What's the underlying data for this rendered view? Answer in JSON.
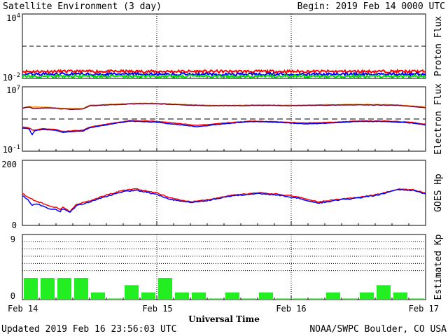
{
  "header": {
    "title": "Satellite Environment (3 day)",
    "begin": "Begin:  2019 Feb 14 0000 UTC"
  },
  "footer": {
    "updated": "Updated 2019 Feb 16 23:56:03 UTC",
    "credit": "NOAA/SWPC Boulder, CO USA"
  },
  "chart_data": [
    {
      "type": "line",
      "title": "Proton Flux",
      "ylabel": "Proton Flux",
      "yscale": "log",
      "ylim_exp": [
        -2,
        4
      ],
      "ytick_labels": [
        {
          "base": "10",
          "exp": "4"
        },
        {
          "base": "10",
          "exp": "-2"
        }
      ],
      "threshold_exp": 1,
      "xlim_days": [
        0,
        3
      ],
      "series": [
        {
          "color": "#ff0000",
          "level_exp": -1.35,
          "noise": 0.12
        },
        {
          "color": "#0000ff",
          "level_exp": -1.6,
          "noise": 0.12
        },
        {
          "color": "#00e000",
          "level_exp": -1.8,
          "noise": 0.12
        }
      ]
    },
    {
      "type": "line",
      "title": "Electron Flux",
      "ylabel": "Electron Flux",
      "yscale": "log",
      "ylim_exp": [
        -1,
        7
      ],
      "ytick_labels": [
        {
          "base": "10",
          "exp": "7"
        },
        {
          "base": "10",
          "exp": "-1"
        }
      ],
      "threshold_exp": 3,
      "xlim_days": [
        0,
        3
      ],
      "series": [
        {
          "color": "#ff8c00",
          "points": [
            [
              0,
              4.4
            ],
            [
              0.05,
              4.55
            ],
            [
              0.08,
              4.5
            ],
            [
              0.2,
              4.45
            ],
            [
              0.3,
              4.3
            ],
            [
              0.38,
              4.3
            ],
            [
              0.45,
              4.3
            ],
            [
              0.5,
              4.7
            ],
            [
              0.7,
              4.85
            ],
            [
              0.85,
              4.95
            ],
            [
              1.0,
              4.95
            ],
            [
              1.2,
              4.8
            ],
            [
              1.4,
              4.7
            ],
            [
              1.6,
              4.7
            ],
            [
              1.8,
              4.75
            ],
            [
              2.0,
              4.7
            ],
            [
              2.2,
              4.75
            ],
            [
              2.4,
              4.8
            ],
            [
              2.6,
              4.8
            ],
            [
              2.8,
              4.75
            ],
            [
              3.0,
              4.5
            ]
          ]
        },
        {
          "color": "#7a0030",
          "points": [
            [
              0,
              4.35
            ],
            [
              0.05,
              4.5
            ],
            [
              0.08,
              4.3
            ],
            [
              0.2,
              4.4
            ],
            [
              0.3,
              4.25
            ],
            [
              0.38,
              4.2
            ],
            [
              0.45,
              4.25
            ],
            [
              0.5,
              4.65
            ],
            [
              0.7,
              4.8
            ],
            [
              0.85,
              4.9
            ],
            [
              1.0,
              4.9
            ],
            [
              1.2,
              4.75
            ],
            [
              1.4,
              4.65
            ],
            [
              1.6,
              4.65
            ],
            [
              1.8,
              4.7
            ],
            [
              2.0,
              4.65
            ],
            [
              2.2,
              4.7
            ],
            [
              2.4,
              4.75
            ],
            [
              2.6,
              4.75
            ],
            [
              2.8,
              4.7
            ],
            [
              3.0,
              4.4
            ]
          ]
        },
        {
          "color": "#ff0000",
          "points": [
            [
              0,
              2.0
            ],
            [
              0.05,
              1.9
            ],
            [
              0.08,
              1.6
            ],
            [
              0.15,
              1.8
            ],
            [
              0.25,
              1.7
            ],
            [
              0.3,
              1.45
            ],
            [
              0.38,
              1.55
            ],
            [
              0.45,
              1.6
            ],
            [
              0.5,
              2.0
            ],
            [
              0.6,
              2.3
            ],
            [
              0.8,
              2.8
            ],
            [
              1.0,
              2.7
            ],
            [
              1.1,
              2.55
            ],
            [
              1.3,
              2.2
            ],
            [
              1.5,
              2.5
            ],
            [
              1.7,
              2.75
            ],
            [
              1.9,
              2.65
            ],
            [
              2.1,
              2.5
            ],
            [
              2.3,
              2.6
            ],
            [
              2.5,
              2.75
            ],
            [
              2.7,
              2.75
            ],
            [
              2.9,
              2.6
            ],
            [
              3.0,
              2.35
            ]
          ]
        },
        {
          "color": "#0000ff",
          "points": [
            [
              0,
              1.9
            ],
            [
              0.05,
              1.8
            ],
            [
              0.07,
              1.0
            ],
            [
              0.09,
              1.55
            ],
            [
              0.15,
              1.7
            ],
            [
              0.25,
              1.6
            ],
            [
              0.3,
              1.35
            ],
            [
              0.38,
              1.45
            ],
            [
              0.45,
              1.5
            ],
            [
              0.5,
              1.9
            ],
            [
              0.6,
              2.2
            ],
            [
              0.8,
              2.75
            ],
            [
              1.0,
              2.6
            ],
            [
              1.1,
              2.4
            ],
            [
              1.3,
              2.05
            ],
            [
              1.5,
              2.4
            ],
            [
              1.7,
              2.7
            ],
            [
              1.9,
              2.6
            ],
            [
              2.1,
              2.4
            ],
            [
              2.3,
              2.5
            ],
            [
              2.5,
              2.7
            ],
            [
              2.7,
              2.7
            ],
            [
              2.9,
              2.5
            ],
            [
              3.0,
              2.25
            ]
          ]
        }
      ]
    },
    {
      "type": "line",
      "title": "GOES Hp",
      "ylabel": "GOES Hp",
      "ylim": [
        0,
        200
      ],
      "yticks": [
        0,
        200
      ],
      "xlim_days": [
        0,
        3
      ],
      "series": [
        {
          "color": "#ff0000",
          "points": [
            [
              0,
              98
            ],
            [
              0.05,
              85
            ],
            [
              0.1,
              75
            ],
            [
              0.15,
              68
            ],
            [
              0.2,
              60
            ],
            [
              0.25,
              55
            ],
            [
              0.28,
              48
            ],
            [
              0.3,
              58
            ],
            [
              0.35,
              42
            ],
            [
              0.38,
              55
            ],
            [
              0.4,
              65
            ],
            [
              0.5,
              75
            ],
            [
              0.6,
              90
            ],
            [
              0.75,
              108
            ],
            [
              0.85,
              112
            ],
            [
              1.0,
              100
            ],
            [
              1.1,
              85
            ],
            [
              1.25,
              72
            ],
            [
              1.4,
              80
            ],
            [
              1.55,
              92
            ],
            [
              1.75,
              100
            ],
            [
              1.9,
              96
            ],
            [
              2.05,
              88
            ],
            [
              2.2,
              72
            ],
            [
              2.35,
              80
            ],
            [
              2.5,
              86
            ],
            [
              2.65,
              96
            ],
            [
              2.8,
              112
            ],
            [
              2.9,
              110
            ],
            [
              3.0,
              100
            ]
          ]
        },
        {
          "color": "#0000ff",
          "points": [
            [
              0,
              92
            ],
            [
              0.05,
              75
            ],
            [
              0.07,
              60
            ],
            [
              0.1,
              68
            ],
            [
              0.15,
              60
            ],
            [
              0.2,
              52
            ],
            [
              0.25,
              48
            ],
            [
              0.28,
              42
            ],
            [
              0.3,
              52
            ],
            [
              0.35,
              40
            ],
            [
              0.38,
              50
            ],
            [
              0.4,
              60
            ],
            [
              0.5,
              72
            ],
            [
              0.6,
              86
            ],
            [
              0.75,
              104
            ],
            [
              0.85,
              108
            ],
            [
              1.0,
              95
            ],
            [
              1.1,
              80
            ],
            [
              1.25,
              70
            ],
            [
              1.4,
              78
            ],
            [
              1.55,
              90
            ],
            [
              1.75,
              98
            ],
            [
              1.9,
              93
            ],
            [
              2.05,
              84
            ],
            [
              2.2,
              68
            ],
            [
              2.35,
              78
            ],
            [
              2.5,
              84
            ],
            [
              2.65,
              94
            ],
            [
              2.8,
              110
            ],
            [
              2.9,
              108
            ],
            [
              3.0,
              97
            ]
          ]
        }
      ]
    },
    {
      "type": "bar",
      "title": "Estimated Kp",
      "ylabel": "Estimated Kp",
      "ylim": [
        0,
        9
      ],
      "yticks": [
        0,
        9
      ],
      "xlabel": "Universal Time",
      "x_tick_labels": [
        "Feb 14",
        "Feb 15",
        "Feb 16",
        "Feb 17"
      ],
      "bar_color": "#22ee22",
      "values": [
        3,
        3,
        3,
        3,
        1,
        0.15,
        2,
        1,
        3,
        1,
        1,
        0.15,
        1,
        0.15,
        1,
        0.15,
        0.15,
        0.15,
        1,
        0.15,
        1,
        2,
        1,
        0.15
      ]
    }
  ]
}
